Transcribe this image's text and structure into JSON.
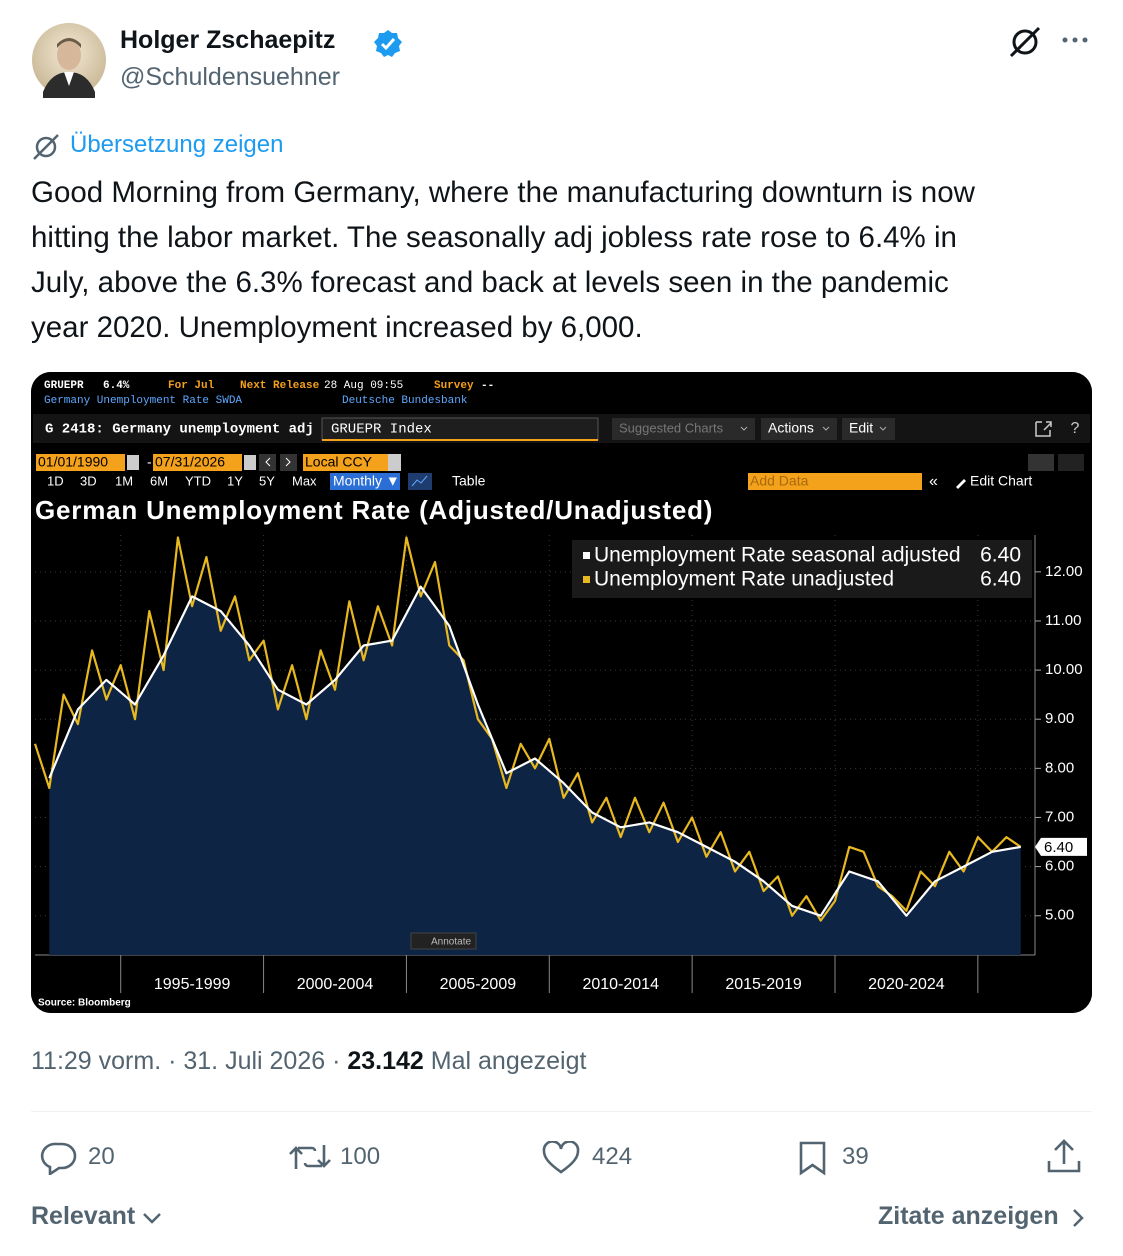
{
  "author": {
    "name": "Holger Zschaepitz",
    "handle": "@Schuldensuehner"
  },
  "translate_link": "Übersetzung zeigen",
  "text_lines": [
    "Good Morning from Germany, where the manufacturing downturn is now",
    "hitting the labor market. The seasonally adj jobless rate rose to 6.4% in",
    "July, above the 6.3% forecast and back at levels seen in the pandemic",
    "year 2020. Unemployment increased by 6,000."
  ],
  "chart_image": {
    "ticker": "GRUEPR",
    "last": "6.4%",
    "period": "For Jul",
    "next_release_label": "Next Release",
    "next_release": "28 Aug 09:55",
    "survey_label": "Survey",
    "survey": "--",
    "description": "Germany Unemployment Rate SWDA",
    "source_org": "Deutsche Bundesbank",
    "function": "G 2418: Germany unemployment adj",
    "security": "GRUEPR Index",
    "suggested": "Suggested Charts",
    "actions": "Actions",
    "edit": "Edit",
    "start_date": "01/01/1990",
    "end_date": "07/31/2026",
    "currency": "Local CCY",
    "ranges": [
      "1D",
      "3D",
      "1M",
      "6M",
      "YTD",
      "1Y",
      "5Y",
      "Max"
    ],
    "frequency": "Monthly ▼",
    "table": "Table",
    "add_data": "Add Data",
    "edit_chart": "Edit Chart",
    "annotate": "Annotate",
    "source": "Source: Bloomberg",
    "chart_data": {
      "type": "line",
      "title": "German Unemployment Rate (Adjusted/Unadjusted)",
      "series": [
        {
          "name": "Unemployment Rate seasonal adjusted",
          "color": "#ffffff",
          "value_label": "6.40",
          "x": [
            1992.5,
            1993.5,
            1994.5,
            1995.5,
            1996.5,
            1997.5,
            1998.5,
            1999.5,
            2000.5,
            2001.5,
            2002.5,
            2003.5,
            2004.5,
            2005.5,
            2006.5,
            2007.5,
            2008.5,
            2009.5,
            2010.5,
            2011.5,
            2012.5,
            2013.5,
            2014.5,
            2015.5,
            2016.5,
            2017.5,
            2018.5,
            2019.5,
            2020.5,
            2021.5,
            2022.5,
            2023.5,
            2024.5,
            2025.5,
            2026.5
          ],
          "values": [
            7.8,
            9.2,
            9.8,
            9.3,
            10.3,
            11.5,
            11.2,
            10.5,
            9.6,
            9.3,
            9.8,
            10.5,
            10.6,
            11.7,
            10.9,
            9.3,
            7.9,
            8.2,
            7.7,
            7.1,
            6.8,
            6.9,
            6.7,
            6.4,
            6.1,
            5.7,
            5.2,
            5.0,
            5.9,
            5.7,
            5.0,
            5.7,
            6.0,
            6.3,
            6.4
          ]
        },
        {
          "name": "Unemployment Rate unadjusted",
          "color": "#e8b820",
          "value_label": "6.40",
          "x": [
            1992,
            1992.5,
            1993,
            1993.5,
            1994,
            1994.5,
            1995,
            1995.5,
            1996,
            1996.5,
            1997,
            1997.5,
            1998,
            1998.5,
            1999,
            1999.5,
            2000,
            2000.5,
            2001,
            2001.5,
            2002,
            2002.5,
            2003,
            2003.5,
            2004,
            2004.5,
            2005,
            2005.5,
            2006,
            2006.5,
            2007,
            2007.5,
            2008,
            2008.5,
            2009,
            2009.5,
            2010,
            2010.5,
            2011,
            2011.5,
            2012,
            2012.5,
            2013,
            2013.5,
            2014,
            2014.5,
            2015,
            2015.5,
            2016,
            2016.5,
            2017,
            2017.5,
            2018,
            2018.5,
            2019,
            2019.5,
            2020,
            2020.5,
            2021,
            2021.5,
            2022,
            2022.5,
            2023,
            2023.5,
            2024,
            2024.5,
            2025,
            2025.5,
            2026,
            2026.5
          ],
          "values": [
            8.5,
            7.6,
            9.5,
            8.9,
            10.4,
            9.4,
            10.1,
            9.0,
            11.2,
            10.0,
            12.7,
            11.3,
            12.3,
            10.8,
            11.5,
            10.2,
            10.6,
            9.2,
            10.1,
            9.0,
            10.4,
            9.6,
            11.4,
            10.2,
            11.3,
            10.5,
            12.7,
            11.5,
            12.2,
            10.5,
            10.2,
            9.0,
            8.6,
            7.6,
            8.5,
            8.0,
            8.6,
            7.4,
            7.9,
            6.9,
            7.4,
            6.6,
            7.4,
            6.7,
            7.3,
            6.5,
            7.0,
            6.2,
            6.7,
            5.9,
            6.3,
            5.5,
            5.8,
            5.0,
            5.4,
            4.9,
            5.3,
            6.4,
            6.3,
            5.6,
            5.4,
            5.1,
            5.9,
            5.6,
            6.3,
            5.9,
            6.6,
            6.3,
            6.6,
            6.4
          ]
        }
      ],
      "xlim": [
        1992,
        2027
      ],
      "ylim": [
        4.2,
        12.75
      ],
      "xticks": [
        1995,
        2000,
        2005,
        2010,
        2015,
        2020,
        2025
      ],
      "period_labels": [
        {
          "value": 1997.5,
          "label": "1995-1999"
        },
        {
          "value": 2002.5,
          "label": "2000-2004"
        },
        {
          "value": 2007.5,
          "label": "2005-2009"
        },
        {
          "value": 2012.5,
          "label": "2010-2014"
        },
        {
          "value": 2017.5,
          "label": "2015-2019"
        },
        {
          "value": 2022.5,
          "label": "2020-2024"
        }
      ],
      "yticks": [
        {
          "value": 5,
          "label": "5.00"
        },
        {
          "value": 6,
          "label": "6.00"
        },
        {
          "value": 7,
          "label": "7.00"
        },
        {
          "value": 8,
          "label": "8.00"
        },
        {
          "value": 9,
          "label": "9.00"
        },
        {
          "value": 10,
          "label": "10.00"
        },
        {
          "value": 11,
          "label": "11.00"
        },
        {
          "value": 12,
          "label": "12.00"
        }
      ],
      "last_value_tag": {
        "value": 6.4,
        "label": "6.40"
      },
      "grid": true,
      "legend": "top-right"
    }
  },
  "timestamp": "11:29 vorm. · 31. Juli 2026 ·",
  "views": "23.142",
  "views_label": "Mal angezeigt",
  "actions": {
    "replies": 20,
    "reposts": 100,
    "likes": 424,
    "bookmarks": 39
  },
  "footer": {
    "sort": "Relevant",
    "quotes": "Zitate anzeigen"
  }
}
